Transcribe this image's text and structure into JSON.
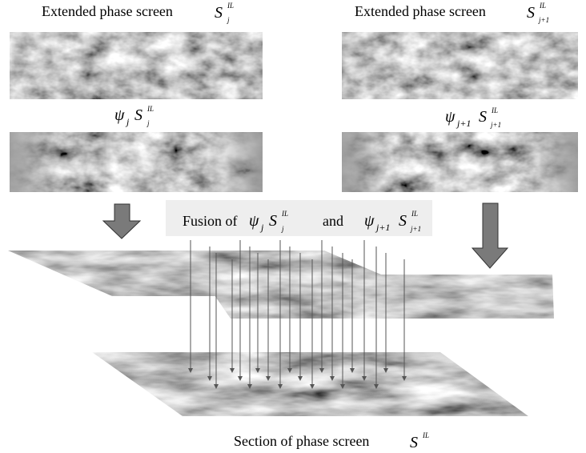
{
  "labels": {
    "top_left": {
      "text": "Extended phase screen",
      "symbol": "S",
      "sup": "IL",
      "sub": "j"
    },
    "top_right": {
      "text": "Extended phase screen",
      "symbol": "S",
      "sup": "IL",
      "sub": "j+1"
    },
    "weighted_left": {
      "psi": "ψ",
      "psi_sub": "j",
      "symbol": "S",
      "sup": "IL",
      "sub": "j"
    },
    "weighted_right": {
      "psi": "ψ",
      "psi_sub": "j+1",
      "symbol": "S",
      "sup": "IL",
      "sub": "j+1"
    },
    "fusion": {
      "text": "Fusion of",
      "left": {
        "psi": "ψ",
        "psi_sub": "j",
        "symbol": "S",
        "sup": "IL",
        "sub": "j"
      },
      "joiner": "and",
      "right": {
        "psi": "ψ",
        "psi_sub": "j+1",
        "symbol": "S",
        "sup": "IL",
        "sub": "j+1"
      }
    },
    "bottom": {
      "text": "Section of phase screen",
      "symbol": "S",
      "sup": "IL"
    }
  }
}
